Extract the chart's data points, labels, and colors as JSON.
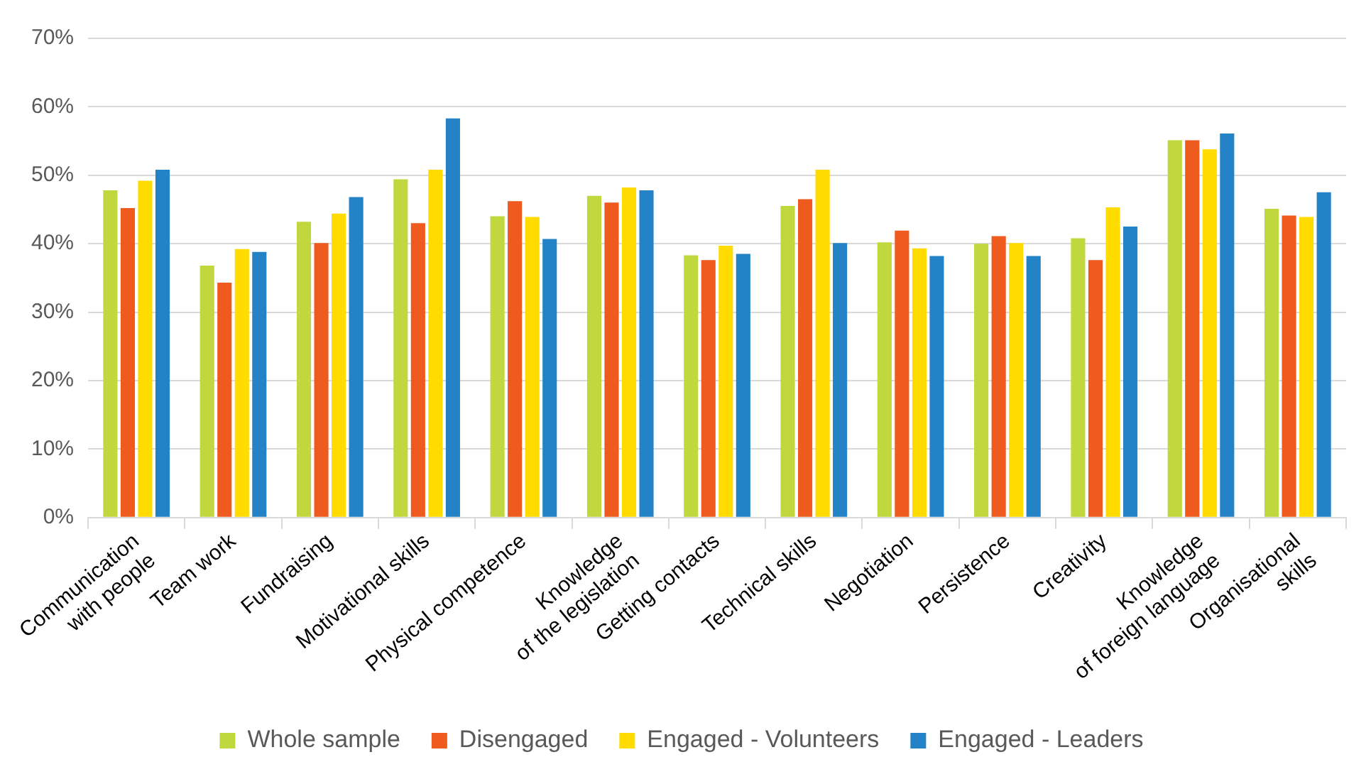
{
  "chart_data": {
    "type": "bar",
    "categories": [
      "Communication\nwith people",
      "Team work",
      "Fundraising",
      "Motivational skills",
      "Physical competence",
      "Knowledge\nof the legislation",
      "Getting contacts",
      "Technical skills",
      "Negotiation",
      "Persistence",
      "Creativity",
      "Knowledge\nof foreign language",
      "Organisational\nskills"
    ],
    "series": [
      {
        "name": "Whole sample",
        "color": "#c0d73d",
        "values": [
          47.8,
          36.8,
          43.2,
          49.4,
          44.0,
          47.0,
          38.3,
          45.5,
          40.2,
          40.0,
          40.8,
          55.1,
          45.1
        ]
      },
      {
        "name": "Disengaged",
        "color": "#ef5a1e",
        "values": [
          45.2,
          34.3,
          40.1,
          43.0,
          46.2,
          46.0,
          37.6,
          46.5,
          41.9,
          41.1,
          37.6,
          55.1,
          44.1
        ]
      },
      {
        "name": "Engaged - Volunteers",
        "color": "#ffdb00",
        "values": [
          49.2,
          39.2,
          44.4,
          50.8,
          43.9,
          48.2,
          39.7,
          50.8,
          39.3,
          40.1,
          45.3,
          53.8,
          43.9
        ]
      },
      {
        "name": "Engaged - Leaders",
        "color": "#2383c6",
        "values": [
          50.8,
          38.8,
          46.8,
          58.3,
          40.7,
          47.8,
          38.5,
          40.1,
          38.2,
          38.2,
          42.5,
          56.1,
          47.5
        ]
      }
    ],
    "ylim": [
      0,
      70
    ],
    "yticks": [
      {
        "value": 0,
        "label": "0%"
      },
      {
        "value": 10,
        "label": "10%"
      },
      {
        "value": 20,
        "label": "20%"
      },
      {
        "value": 30,
        "label": "30%"
      },
      {
        "value": 40,
        "label": "40%"
      },
      {
        "value": 50,
        "label": "50%"
      },
      {
        "value": 60,
        "label": "60%"
      },
      {
        "value": 70,
        "label": "70%"
      }
    ],
    "grid": "y",
    "legend": "bottom"
  }
}
